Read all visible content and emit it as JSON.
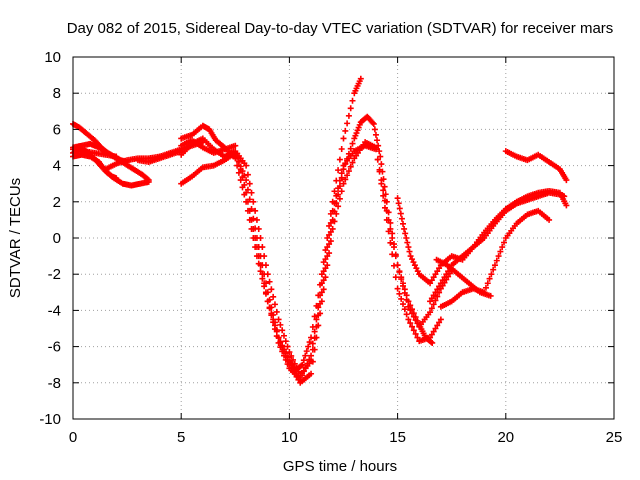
{
  "chart_data": {
    "type": "scatter",
    "title": "Day 082 of 2015, Sidereal Day-to-day VTEC variation (SDTVAR) for receiver mars",
    "xlabel": "GPS time / hours",
    "ylabel": "SDTVAR / TECUs",
    "xlim": [
      0,
      25
    ],
    "ylim": [
      -10,
      10
    ],
    "xticks": [
      0,
      5,
      10,
      15,
      20,
      25
    ],
    "yticks": [
      -10,
      -8,
      -6,
      -4,
      -2,
      0,
      2,
      4,
      6,
      8,
      10
    ],
    "grid": true,
    "marker": "plus",
    "color": "#ff0000",
    "series": [
      {
        "x": [
          0.0,
          0.3,
          0.6,
          1.0,
          1.3,
          1.6,
          1.9,
          2.2,
          2.5
        ],
        "y": [
          6.3,
          6.1,
          5.8,
          5.4,
          5.0,
          4.7,
          4.5,
          4.3,
          4.2
        ]
      },
      {
        "x": [
          0.0,
          0.4,
          0.8,
          1.2,
          1.6,
          2.0,
          2.4,
          2.8,
          3.2,
          3.5
        ],
        "y": [
          5.0,
          5.1,
          5.2,
          5.0,
          4.7,
          4.4,
          4.1,
          3.8,
          3.5,
          3.2
        ]
      },
      {
        "x": [
          0.0,
          0.4,
          0.8,
          1.2,
          1.5,
          1.9,
          2.3,
          2.7,
          3.1,
          3.5
        ],
        "y": [
          4.5,
          4.6,
          4.5,
          4.2,
          3.7,
          3.3,
          3.0,
          2.9,
          3.0,
          3.1
        ]
      },
      {
        "x": [
          0.0,
          0.3,
          0.6,
          0.9,
          1.2,
          1.5,
          1.8,
          2.0
        ],
        "y": [
          4.7,
          4.9,
          4.8,
          4.5,
          4.1,
          3.7,
          3.4,
          3.3
        ]
      },
      {
        "x": [
          0.0,
          0.5,
          1.0,
          1.5,
          2.0
        ],
        "y": [
          4.9,
          4.8,
          4.7,
          4.6,
          4.5
        ]
      },
      {
        "x": [
          1.5,
          2.0,
          2.5,
          3.0,
          3.5,
          4.0,
          4.5,
          5.0,
          5.5,
          6.0
        ],
        "y": [
          3.8,
          4.1,
          4.3,
          4.4,
          4.4,
          4.5,
          4.7,
          4.9,
          5.1,
          5.3
        ]
      },
      {
        "x": [
          3.0,
          3.5,
          4.0,
          4.5,
          5.0
        ],
        "y": [
          4.3,
          4.2,
          4.4,
          4.6,
          4.8
        ]
      },
      {
        "x": [
          5.0,
          5.5,
          6.0,
          6.3,
          6.6,
          7.0,
          7.5,
          8.0,
          8.5,
          9.0,
          9.5,
          10.0,
          10.3,
          10.6,
          11.0,
          11.5,
          12.0,
          12.5,
          13.0,
          13.3
        ],
        "y": [
          5.5,
          5.7,
          6.2,
          6.0,
          5.4,
          5.0,
          4.4,
          2.0,
          -1.0,
          -3.5,
          -5.5,
          -6.8,
          -7.3,
          -7.0,
          -5.5,
          -2.0,
          2.0,
          5.5,
          8.0,
          8.8
        ]
      },
      {
        "x": [
          5.0,
          5.5,
          6.0,
          6.5,
          7.0,
          7.5,
          8.0,
          8.5,
          9.0,
          9.5,
          10.0,
          10.5,
          11.0,
          11.5,
          12.0,
          12.5,
          13.0,
          13.3,
          13.6,
          13.9,
          14.2,
          14.5,
          15.0,
          15.5,
          16.0,
          16.3,
          16.6
        ],
        "y": [
          4.6,
          5.2,
          5.5,
          4.9,
          4.5,
          4.8,
          4.0,
          1.0,
          -2.0,
          -4.5,
          -6.3,
          -7.6,
          -6.8,
          -3.0,
          1.0,
          3.8,
          5.5,
          6.4,
          6.7,
          6.3,
          4.5,
          2.0,
          -1.5,
          -3.5,
          -4.8,
          -5.5,
          -5.8
        ]
      },
      {
        "x": [
          5.0,
          5.5,
          6.0,
          6.5,
          7.0,
          7.5,
          8.0,
          8.5,
          9.0,
          9.5,
          10.0,
          10.5,
          11.0,
          11.5,
          12.0,
          12.5,
          13.0,
          13.5,
          14.0,
          14.5,
          15.0,
          15.5,
          16.0,
          16.5,
          17.0
        ],
        "y": [
          3.0,
          3.4,
          3.9,
          4.0,
          4.3,
          4.7,
          3.2,
          0.0,
          -3.0,
          -5.5,
          -7.0,
          -8.0,
          -7.5,
          -3.5,
          0.5,
          3.0,
          4.4,
          5.3,
          5.0,
          1.0,
          -2.8,
          -4.5,
          -5.7,
          -5.5,
          -4.5
        ]
      },
      {
        "x": [
          5.0,
          5.5,
          6.0,
          6.5,
          7.0,
          7.5,
          8.0,
          8.5,
          9.0,
          9.5,
          10.0,
          10.5,
          11.0,
          11.5,
          12.0,
          12.5,
          13.0,
          13.5,
          14.0,
          14.5,
          15.0,
          15.5,
          16.0,
          16.5,
          17.0,
          17.5
        ],
        "y": [
          5.1,
          5.4,
          5.0,
          4.7,
          4.9,
          5.1,
          2.5,
          -0.5,
          -3.5,
          -5.8,
          -7.2,
          -7.8,
          -6.5,
          -2.5,
          1.5,
          4.0,
          4.8,
          5.1,
          4.9,
          1.5,
          -1.5,
          -3.8,
          -4.9,
          -4.1,
          -2.8,
          -1.8
        ]
      },
      {
        "x": [
          15.0,
          15.3,
          15.6,
          16.0,
          16.5,
          17.0,
          17.5,
          18.0,
          18.5,
          19.0,
          19.5,
          20.0,
          20.5,
          21.0,
          21.5,
          22.0,
          22.5,
          22.8
        ],
        "y": [
          2.2,
          0.5,
          -1.0,
          -2.0,
          -2.5,
          -1.5,
          -1.0,
          -1.2,
          -0.5,
          0.3,
          1.0,
          1.6,
          2.0,
          2.3,
          2.5,
          2.6,
          2.5,
          1.8
        ]
      },
      {
        "x": [
          16.5,
          17.0,
          17.5,
          18.0,
          18.5,
          19.0,
          19.5,
          20.0,
          20.5,
          21.0,
          21.5,
          22.0,
          22.5,
          22.7
        ],
        "y": [
          -3.5,
          -2.5,
          -1.5,
          -1.0,
          -0.5,
          0.0,
          0.8,
          1.5,
          1.9,
          2.1,
          2.3,
          2.5,
          2.4,
          2.3
        ]
      },
      {
        "x": [
          17.0,
          17.5,
          18.0,
          18.5,
          19.0,
          19.5,
          20.0,
          20.5,
          21.0,
          21.5,
          22.0
        ],
        "y": [
          -3.8,
          -3.5,
          -3.0,
          -2.8,
          -3.0,
          -1.5,
          0.0,
          0.8,
          1.3,
          1.5,
          1.0
        ]
      },
      {
        "x": [
          16.8,
          17.3,
          17.8,
          18.3,
          18.8,
          19.3
        ],
        "y": [
          -1.2,
          -1.5,
          -2.0,
          -2.5,
          -3.0,
          -3.2
        ]
      },
      {
        "x": [
          20.0,
          20.5,
          21.0,
          21.5,
          22.0,
          22.5,
          22.8
        ],
        "y": [
          4.8,
          4.5,
          4.3,
          4.6,
          4.2,
          3.8,
          3.2
        ]
      }
    ]
  }
}
